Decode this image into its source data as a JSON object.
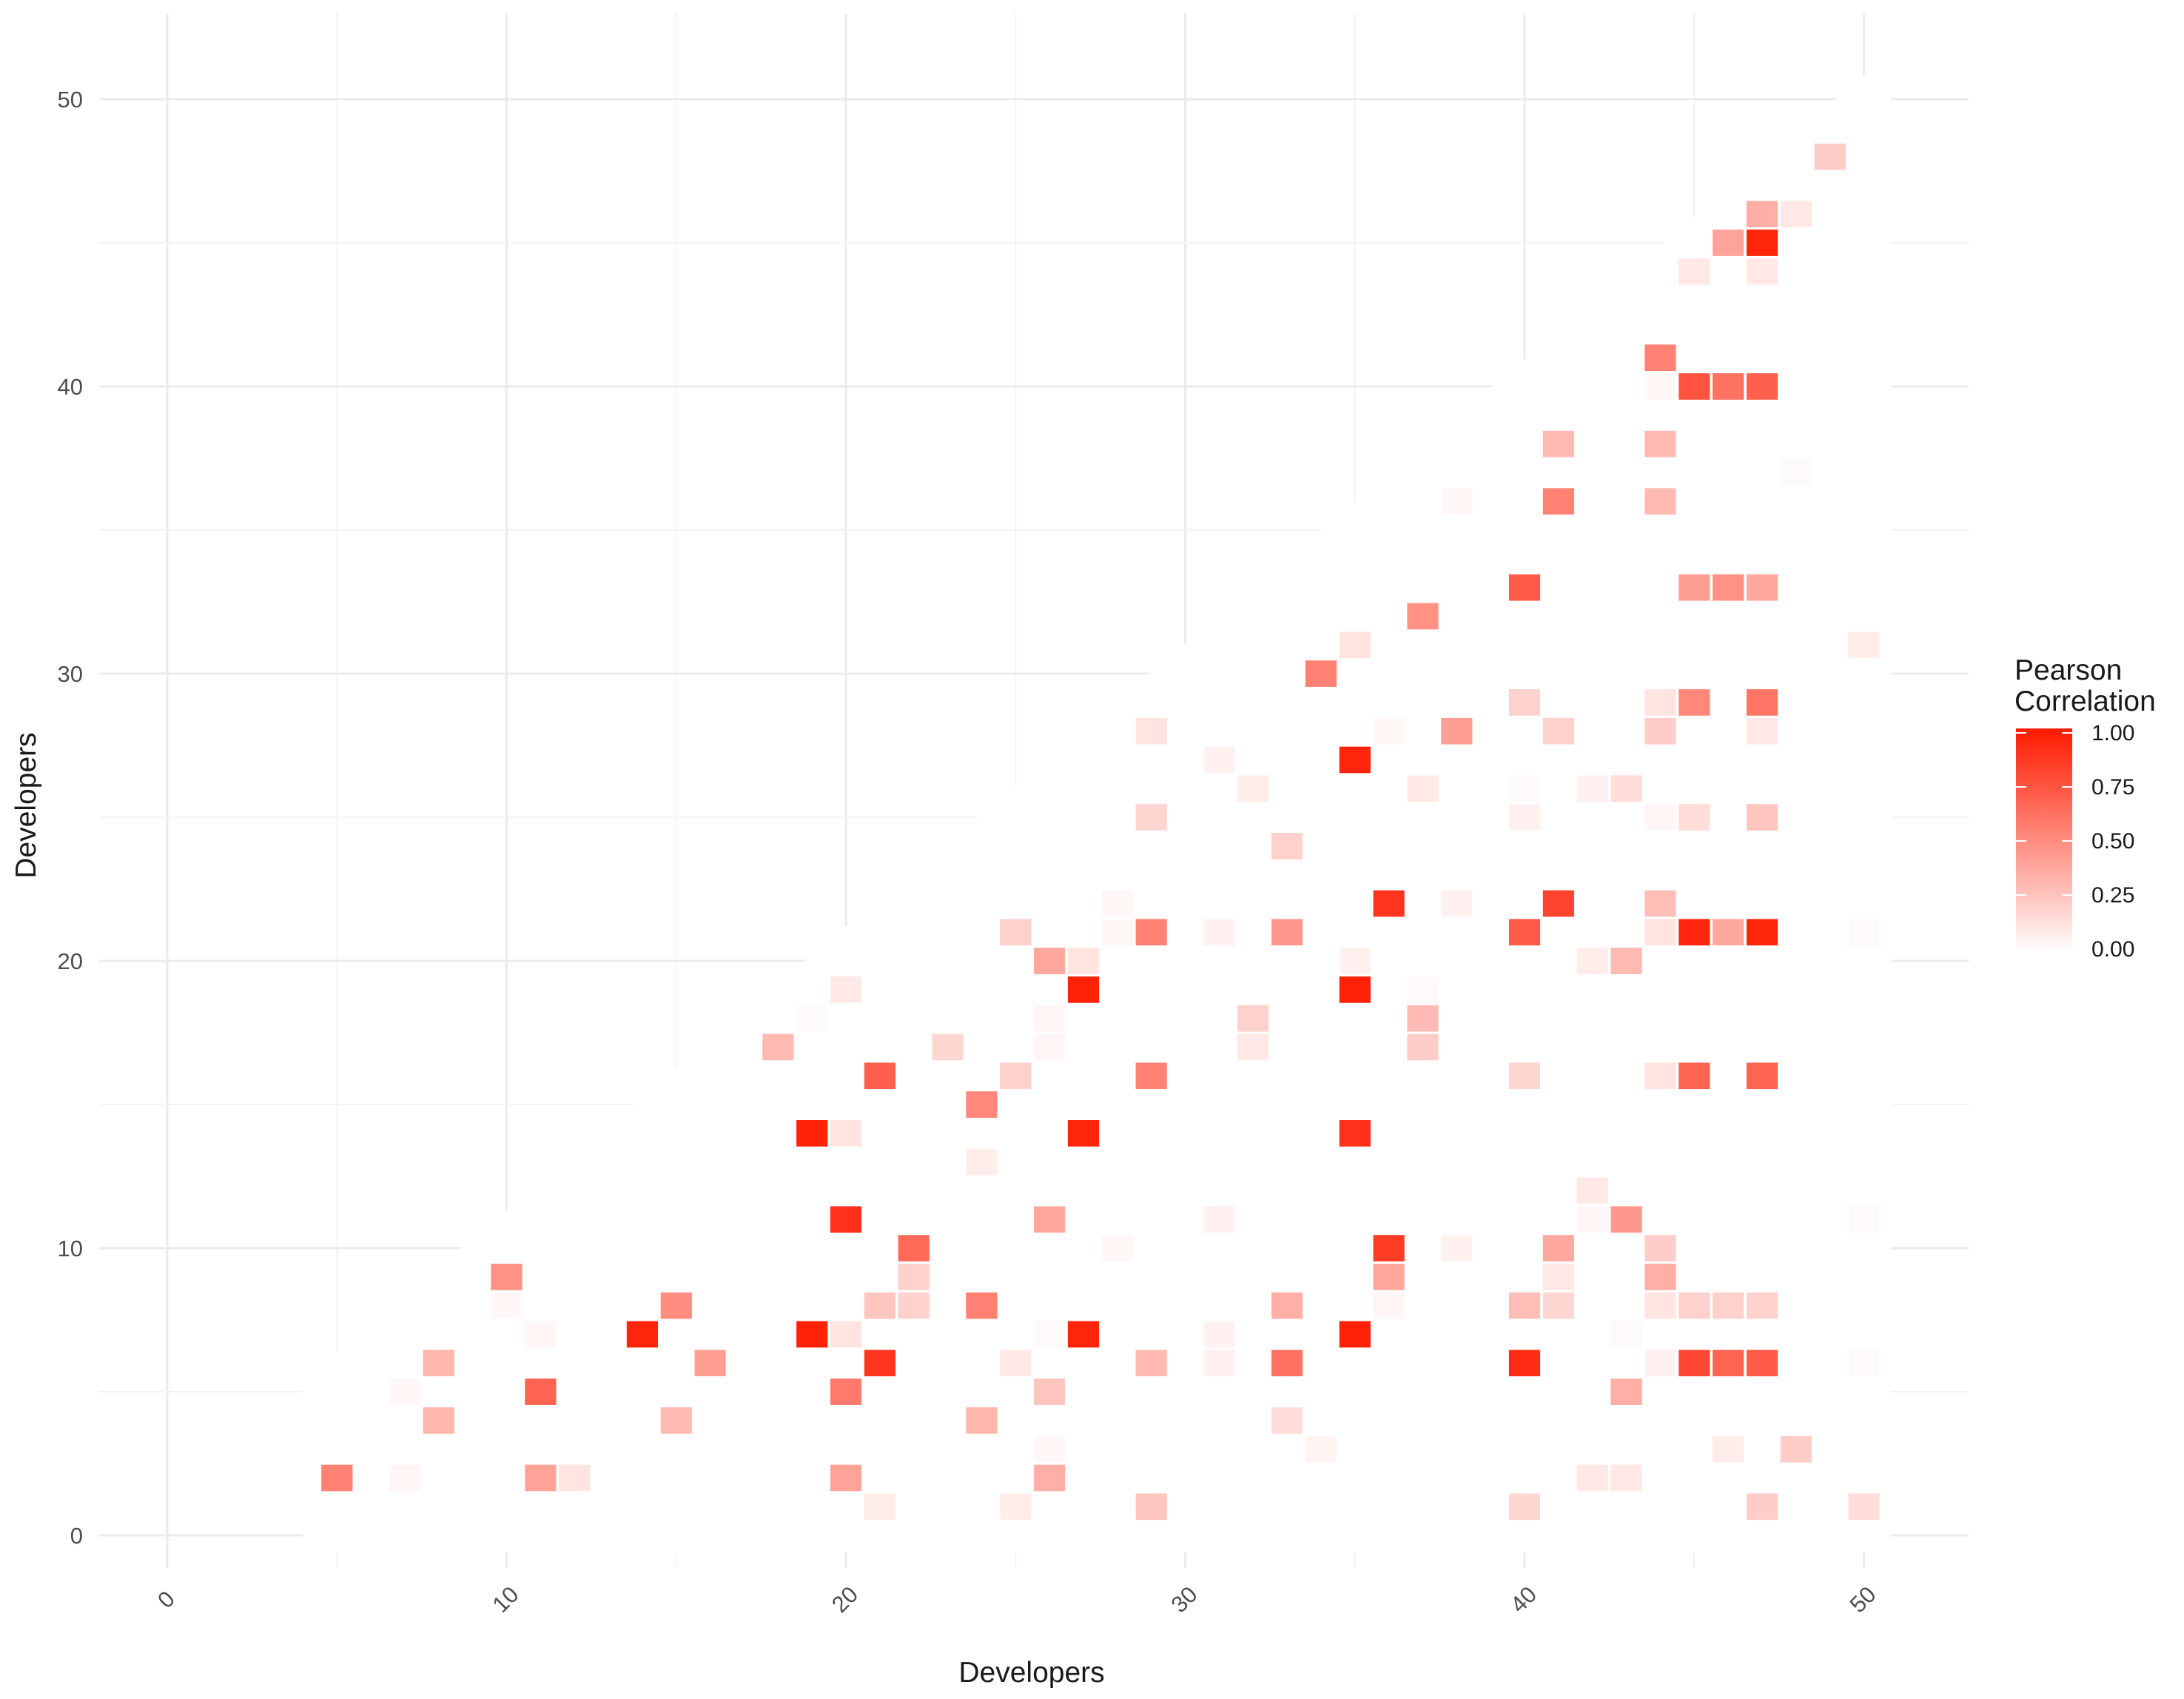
{
  "chart_data": {
    "type": "heatmap",
    "title": "",
    "xlabel": "Developers",
    "ylabel": "Developers",
    "xlim": [
      -2,
      53
    ],
    "ylim": [
      -2,
      53
    ],
    "x_ticks": [
      0,
      10,
      20,
      30,
      40,
      50
    ],
    "y_ticks": [
      0,
      10,
      20,
      30,
      40,
      50
    ],
    "x_tick_labels": [
      "0",
      "10",
      "20",
      "30",
      "40",
      "50"
    ],
    "y_tick_labels": [
      "0",
      "10",
      "20",
      "30",
      "40",
      "50"
    ],
    "x_tick_rotation_deg": 45,
    "grid": true,
    "background_mask": "lower-triangle white panel over the grid",
    "color_scale": {
      "low": "#ffffff",
      "high": "#ff1a00",
      "domain": [
        0,
        1
      ]
    },
    "legend": {
      "title_lines": [
        "Pearson",
        "Correlation"
      ],
      "ticks": [
        1.0,
        0.75,
        0.5,
        0.25,
        0.0
      ],
      "tick_labels": [
        "1.00",
        "0.75",
        "0.50",
        "0.25",
        "0.00"
      ],
      "placement": "right"
    },
    "cells": [
      {
        "x": 5,
        "y": 2,
        "value": 0.55
      },
      {
        "x": 7,
        "y": 2,
        "value": 0.04
      },
      {
        "x": 7,
        "y": 5,
        "value": 0.03
      },
      {
        "x": 8,
        "y": 4,
        "value": 0.32
      },
      {
        "x": 8,
        "y": 6,
        "value": 0.32
      },
      {
        "x": 10,
        "y": 8,
        "value": 0.03
      },
      {
        "x": 10,
        "y": 9,
        "value": 0.48
      },
      {
        "x": 11,
        "y": 2,
        "value": 0.4
      },
      {
        "x": 11,
        "y": 5,
        "value": 0.68
      },
      {
        "x": 11,
        "y": 7,
        "value": 0.04
      },
      {
        "x": 12,
        "y": 2,
        "value": 0.12
      },
      {
        "x": 14,
        "y": 7,
        "value": 0.95
      },
      {
        "x": 15,
        "y": 4,
        "value": 0.3
      },
      {
        "x": 15,
        "y": 8,
        "value": 0.5
      },
      {
        "x": 16,
        "y": 6,
        "value": 0.42
      },
      {
        "x": 18,
        "y": 17,
        "value": 0.3
      },
      {
        "x": 19,
        "y": 7,
        "value": 0.97
      },
      {
        "x": 19,
        "y": 14,
        "value": 0.97
      },
      {
        "x": 19,
        "y": 18,
        "value": 0.02
      },
      {
        "x": 20,
        "y": 2,
        "value": 0.4
      },
      {
        "x": 20,
        "y": 5,
        "value": 0.58
      },
      {
        "x": 20,
        "y": 7,
        "value": 0.12
      },
      {
        "x": 20,
        "y": 11,
        "value": 0.9
      },
      {
        "x": 20,
        "y": 14,
        "value": 0.12
      },
      {
        "x": 20,
        "y": 19,
        "value": 0.1
      },
      {
        "x": 21,
        "y": 1,
        "value": 0.08
      },
      {
        "x": 21,
        "y": 6,
        "value": 0.88
      },
      {
        "x": 21,
        "y": 8,
        "value": 0.25
      },
      {
        "x": 21,
        "y": 16,
        "value": 0.7
      },
      {
        "x": 22,
        "y": 8,
        "value": 0.2
      },
      {
        "x": 22,
        "y": 9,
        "value": 0.2
      },
      {
        "x": 22,
        "y": 10,
        "value": 0.65
      },
      {
        "x": 23,
        "y": 17,
        "value": 0.18
      },
      {
        "x": 24,
        "y": 4,
        "value": 0.32
      },
      {
        "x": 24,
        "y": 8,
        "value": 0.55
      },
      {
        "x": 24,
        "y": 13,
        "value": 0.08
      },
      {
        "x": 24,
        "y": 15,
        "value": 0.52
      },
      {
        "x": 25,
        "y": 1,
        "value": 0.08
      },
      {
        "x": 25,
        "y": 6,
        "value": 0.1
      },
      {
        "x": 25,
        "y": 16,
        "value": 0.2
      },
      {
        "x": 25,
        "y": 21,
        "value": 0.2
      },
      {
        "x": 26,
        "y": 2,
        "value": 0.35
      },
      {
        "x": 26,
        "y": 3,
        "value": 0.03
      },
      {
        "x": 26,
        "y": 5,
        "value": 0.25
      },
      {
        "x": 26,
        "y": 7,
        "value": 0.02
      },
      {
        "x": 26,
        "y": 11,
        "value": 0.38
      },
      {
        "x": 26,
        "y": 17,
        "value": 0.04
      },
      {
        "x": 26,
        "y": 18,
        "value": 0.04
      },
      {
        "x": 26,
        "y": 20,
        "value": 0.38
      },
      {
        "x": 27,
        "y": 7,
        "value": 0.95
      },
      {
        "x": 27,
        "y": 14,
        "value": 0.95
      },
      {
        "x": 27,
        "y": 19,
        "value": 0.97
      },
      {
        "x": 27,
        "y": 20,
        "value": 0.12
      },
      {
        "x": 28,
        "y": 10,
        "value": 0.03
      },
      {
        "x": 28,
        "y": 21,
        "value": 0.03
      },
      {
        "x": 28,
        "y": 22,
        "value": 0.03
      },
      {
        "x": 29,
        "y": 1,
        "value": 0.25
      },
      {
        "x": 29,
        "y": 6,
        "value": 0.3
      },
      {
        "x": 29,
        "y": 16,
        "value": 0.55
      },
      {
        "x": 29,
        "y": 21,
        "value": 0.55
      },
      {
        "x": 29,
        "y": 25,
        "value": 0.18
      },
      {
        "x": 29,
        "y": 28,
        "value": 0.12
      },
      {
        "x": 31,
        "y": 6,
        "value": 0.06
      },
      {
        "x": 31,
        "y": 7,
        "value": 0.06
      },
      {
        "x": 31,
        "y": 11,
        "value": 0.06
      },
      {
        "x": 31,
        "y": 21,
        "value": 0.06
      },
      {
        "x": 31,
        "y": 27,
        "value": 0.06
      },
      {
        "x": 32,
        "y": 17,
        "value": 0.1
      },
      {
        "x": 32,
        "y": 18,
        "value": 0.2
      },
      {
        "x": 32,
        "y": 26,
        "value": 0.08
      },
      {
        "x": 33,
        "y": 4,
        "value": 0.15
      },
      {
        "x": 33,
        "y": 6,
        "value": 0.62
      },
      {
        "x": 33,
        "y": 8,
        "value": 0.35
      },
      {
        "x": 33,
        "y": 21,
        "value": 0.45
      },
      {
        "x": 33,
        "y": 24,
        "value": 0.2
      },
      {
        "x": 34,
        "y": 3,
        "value": 0.05
      },
      {
        "x": 34,
        "y": 30,
        "value": 0.55
      },
      {
        "x": 35,
        "y": 7,
        "value": 0.97
      },
      {
        "x": 35,
        "y": 14,
        "value": 0.9
      },
      {
        "x": 35,
        "y": 19,
        "value": 0.97
      },
      {
        "x": 35,
        "y": 20,
        "value": 0.06
      },
      {
        "x": 35,
        "y": 27,
        "value": 0.95
      },
      {
        "x": 35,
        "y": 31,
        "value": 0.12
      },
      {
        "x": 36,
        "y": 8,
        "value": 0.04
      },
      {
        "x": 36,
        "y": 9,
        "value": 0.38
      },
      {
        "x": 36,
        "y": 10,
        "value": 0.85
      },
      {
        "x": 36,
        "y": 22,
        "value": 0.88
      },
      {
        "x": 36,
        "y": 28,
        "value": 0.03
      },
      {
        "x": 37,
        "y": 17,
        "value": 0.22
      },
      {
        "x": 37,
        "y": 18,
        "value": 0.3
      },
      {
        "x": 37,
        "y": 19,
        "value": 0.02
      },
      {
        "x": 37,
        "y": 26,
        "value": 0.1
      },
      {
        "x": 37,
        "y": 32,
        "value": 0.48
      },
      {
        "x": 38,
        "y": 10,
        "value": 0.06
      },
      {
        "x": 38,
        "y": 22,
        "value": 0.06
      },
      {
        "x": 38,
        "y": 28,
        "value": 0.42
      },
      {
        "x": 38,
        "y": 36,
        "value": 0.03
      },
      {
        "x": 40,
        "y": 1,
        "value": 0.18
      },
      {
        "x": 40,
        "y": 6,
        "value": 0.92
      },
      {
        "x": 40,
        "y": 8,
        "value": 0.28
      },
      {
        "x": 40,
        "y": 16,
        "value": 0.18
      },
      {
        "x": 40,
        "y": 21,
        "value": 0.72
      },
      {
        "x": 40,
        "y": 25,
        "value": 0.06
      },
      {
        "x": 40,
        "y": 26,
        "value": 0.02
      },
      {
        "x": 40,
        "y": 29,
        "value": 0.2
      },
      {
        "x": 40,
        "y": 33,
        "value": 0.72
      },
      {
        "x": 41,
        "y": 8,
        "value": 0.18
      },
      {
        "x": 41,
        "y": 9,
        "value": 0.1
      },
      {
        "x": 41,
        "y": 10,
        "value": 0.38
      },
      {
        "x": 41,
        "y": 22,
        "value": 0.82
      },
      {
        "x": 41,
        "y": 28,
        "value": 0.2
      },
      {
        "x": 41,
        "y": 36,
        "value": 0.55
      },
      {
        "x": 41,
        "y": 38,
        "value": 0.3
      },
      {
        "x": 42,
        "y": 2,
        "value": 0.1
      },
      {
        "x": 42,
        "y": 11,
        "value": 0.04
      },
      {
        "x": 42,
        "y": 12,
        "value": 0.1
      },
      {
        "x": 42,
        "y": 20,
        "value": 0.08
      },
      {
        "x": 42,
        "y": 26,
        "value": 0.06
      },
      {
        "x": 43,
        "y": 2,
        "value": 0.1
      },
      {
        "x": 43,
        "y": 5,
        "value": 0.35
      },
      {
        "x": 43,
        "y": 7,
        "value": 0.02
      },
      {
        "x": 43,
        "y": 11,
        "value": 0.45
      },
      {
        "x": 43,
        "y": 20,
        "value": 0.3
      },
      {
        "x": 43,
        "y": 26,
        "value": 0.15
      },
      {
        "x": 44,
        "y": 6,
        "value": 0.06
      },
      {
        "x": 44,
        "y": 8,
        "value": 0.12
      },
      {
        "x": 44,
        "y": 9,
        "value": 0.35
      },
      {
        "x": 44,
        "y": 10,
        "value": 0.22
      },
      {
        "x": 44,
        "y": 16,
        "value": 0.12
      },
      {
        "x": 44,
        "y": 21,
        "value": 0.12
      },
      {
        "x": 44,
        "y": 22,
        "value": 0.28
      },
      {
        "x": 44,
        "y": 25,
        "value": 0.04
      },
      {
        "x": 44,
        "y": 28,
        "value": 0.22
      },
      {
        "x": 44,
        "y": 29,
        "value": 0.12
      },
      {
        "x": 44,
        "y": 36,
        "value": 0.3
      },
      {
        "x": 44,
        "y": 38,
        "value": 0.3
      },
      {
        "x": 44,
        "y": 40,
        "value": 0.03
      },
      {
        "x": 44,
        "y": 41,
        "value": 0.55
      },
      {
        "x": 45,
        "y": 6,
        "value": 0.8
      },
      {
        "x": 45,
        "y": 8,
        "value": 0.2
      },
      {
        "x": 45,
        "y": 16,
        "value": 0.68
      },
      {
        "x": 45,
        "y": 21,
        "value": 0.95
      },
      {
        "x": 45,
        "y": 25,
        "value": 0.15
      },
      {
        "x": 45,
        "y": 29,
        "value": 0.52
      },
      {
        "x": 45,
        "y": 33,
        "value": 0.42
      },
      {
        "x": 45,
        "y": 40,
        "value": 0.75
      },
      {
        "x": 45,
        "y": 44,
        "value": 0.1
      },
      {
        "x": 46,
        "y": 3,
        "value": 0.08
      },
      {
        "x": 46,
        "y": 6,
        "value": 0.68
      },
      {
        "x": 46,
        "y": 8,
        "value": 0.2
      },
      {
        "x": 46,
        "y": 21,
        "value": 0.38
      },
      {
        "x": 46,
        "y": 33,
        "value": 0.48
      },
      {
        "x": 46,
        "y": 40,
        "value": 0.62
      },
      {
        "x": 46,
        "y": 45,
        "value": 0.4
      },
      {
        "x": 47,
        "y": 1,
        "value": 0.22
      },
      {
        "x": 47,
        "y": 6,
        "value": 0.72
      },
      {
        "x": 47,
        "y": 8,
        "value": 0.2
      },
      {
        "x": 47,
        "y": 16,
        "value": 0.68
      },
      {
        "x": 47,
        "y": 21,
        "value": 0.95
      },
      {
        "x": 47,
        "y": 25,
        "value": 0.25
      },
      {
        "x": 47,
        "y": 28,
        "value": 0.1
      },
      {
        "x": 47,
        "y": 29,
        "value": 0.6
      },
      {
        "x": 47,
        "y": 33,
        "value": 0.38
      },
      {
        "x": 47,
        "y": 40,
        "value": 0.7
      },
      {
        "x": 47,
        "y": 44,
        "value": 0.1
      },
      {
        "x": 47,
        "y": 45,
        "value": 0.95
      },
      {
        "x": 47,
        "y": 46,
        "value": 0.35
      },
      {
        "x": 48,
        "y": 3,
        "value": 0.22
      },
      {
        "x": 48,
        "y": 37,
        "value": 0.02
      },
      {
        "x": 48,
        "y": 46,
        "value": 0.1
      },
      {
        "x": 49,
        "y": 48,
        "value": 0.22
      },
      {
        "x": 50,
        "y": 1,
        "value": 0.15
      },
      {
        "x": 50,
        "y": 6,
        "value": 0.02
      },
      {
        "x": 50,
        "y": 11,
        "value": 0.02
      },
      {
        "x": 50,
        "y": 21,
        "value": 0.02
      },
      {
        "x": 50,
        "y": 31,
        "value": 0.08
      }
    ]
  }
}
